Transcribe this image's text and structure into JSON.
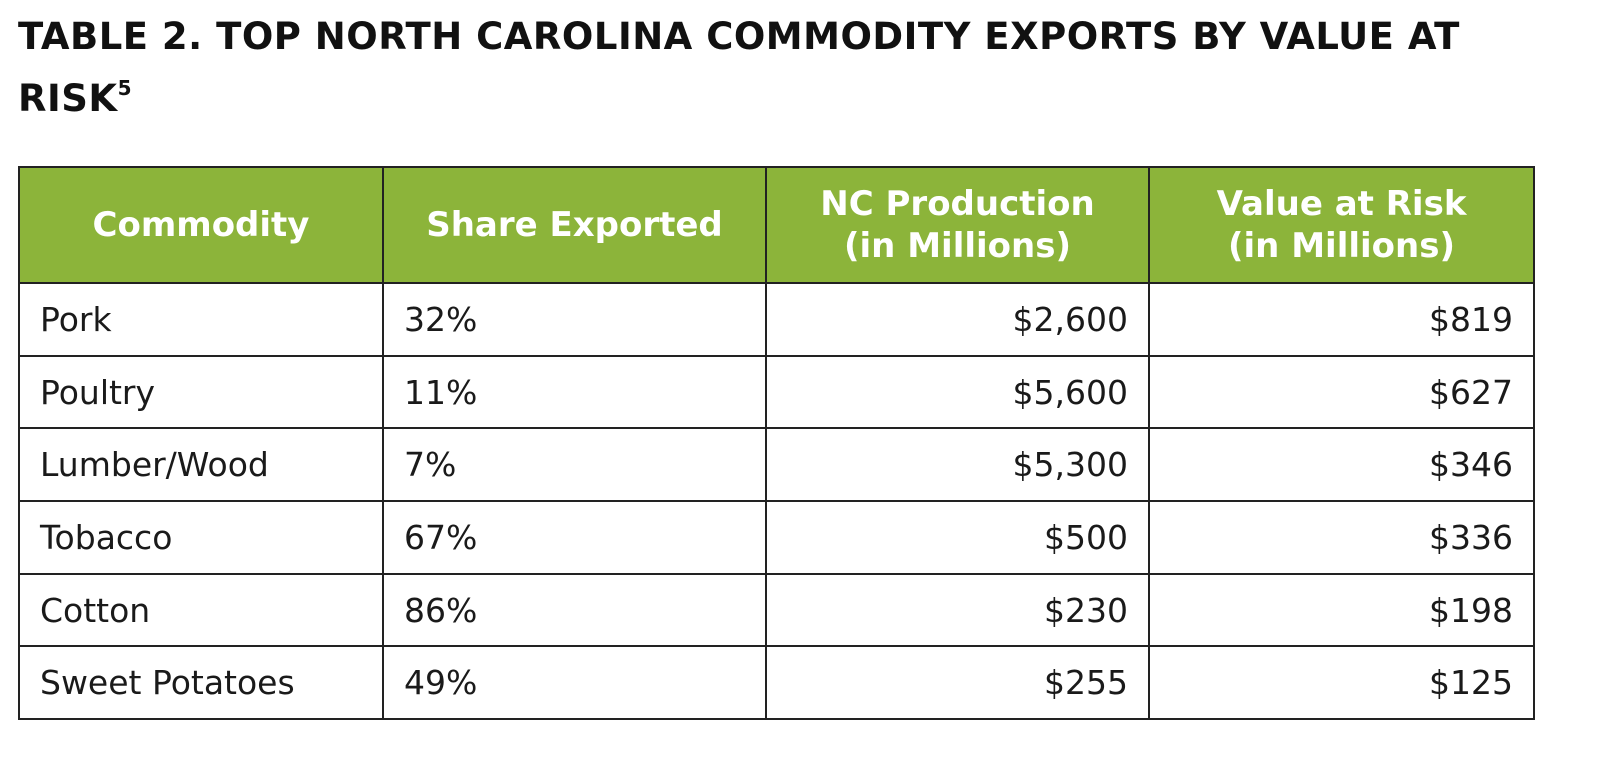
{
  "title": {
    "text": "TABLE 2. TOP NORTH CAROLINA COMMODITY EXPORTS BY VALUE AT RISK",
    "footnote": "5"
  },
  "table": {
    "header": [
      [
        "Commodity"
      ],
      [
        "Share Exported"
      ],
      [
        "NC Production",
        "(in Millions)"
      ],
      [
        "Value at Risk",
        "(in Millions)"
      ]
    ],
    "rows": [
      [
        "Pork",
        "32%",
        "$2,600",
        "$819"
      ],
      [
        "Poultry",
        "11%",
        "$5,600",
        "$627"
      ],
      [
        "Lumber/Wood",
        "7%",
        "$5,300",
        "$346"
      ],
      [
        "Tobacco",
        "67%",
        "$500",
        "$336"
      ],
      [
        "Cotton",
        "86%",
        "$230",
        "$198"
      ],
      [
        "Sweet Potatoes",
        "49%",
        "$255",
        "$125"
      ]
    ]
  }
}
